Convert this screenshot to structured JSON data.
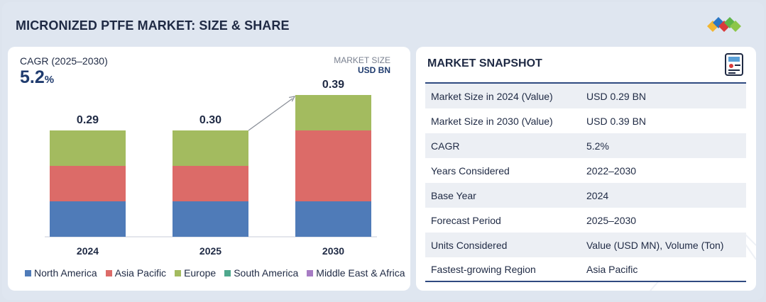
{
  "page": {
    "title": "MICRONIZED PTFE MARKET: SIZE & SHARE"
  },
  "chart_header": {
    "cagr_label": "CAGR (2025–2030)",
    "cagr_value": "5.2",
    "cagr_unit": "%",
    "market_size_label": "MARKET SIZE",
    "market_size_unit": "USD BN"
  },
  "chart_data": {
    "type": "bar",
    "stacked": true,
    "title": "",
    "xlabel": "",
    "ylabel": "",
    "categories": [
      "2024",
      "2025",
      "2030"
    ],
    "totals": [
      0.29,
      0.3,
      0.39
    ],
    "total_labels": [
      "0.29",
      "0.30",
      "0.39"
    ],
    "ylim": [
      0,
      0.45
    ],
    "series": [
      {
        "name": "North America",
        "color": "#4f7bb8",
        "values": [
          0.1,
          0.1,
          0.1
        ]
      },
      {
        "name": "Asia Pacific",
        "color": "#dc6b68",
        "values": [
          0.1,
          0.1,
          0.2
        ]
      },
      {
        "name": "Europe",
        "color": "#a3bb5f",
        "values": [
          0.1,
          0.1,
          0.1
        ]
      },
      {
        "name": "South America",
        "color": "#4fa88d",
        "values": [
          0.0,
          0.0,
          0.0
        ]
      },
      {
        "name": "Middle East & Africa",
        "color": "#a77cc4",
        "values": [
          0.0,
          0.0,
          0.0
        ]
      }
    ],
    "growth_arrow": {
      "from": "2025",
      "to": "2030"
    }
  },
  "snapshot": {
    "title": "MARKET SNAPSHOT",
    "rows": [
      {
        "key": "Market Size in 2024 (Value)",
        "value": "USD 0.29 BN"
      },
      {
        "key": "Market Size in 2030 (Value)",
        "value": "USD 0.39 BN"
      },
      {
        "key": "CAGR",
        "value": "5.2%"
      },
      {
        "key": "Years Considered",
        "value": "2022–2030"
      },
      {
        "key": "Base Year",
        "value": "2024"
      },
      {
        "key": "Forecast Period",
        "value": "2025–2030"
      },
      {
        "key": "Units Considered",
        "value": "Value (USD MN), Volume (Ton)"
      },
      {
        "key": "Fastest-growing Region",
        "value": "Asia Pacific"
      }
    ]
  },
  "icons": {
    "logo": "brand-logo-icon",
    "snapshot": "report-document-icon"
  }
}
